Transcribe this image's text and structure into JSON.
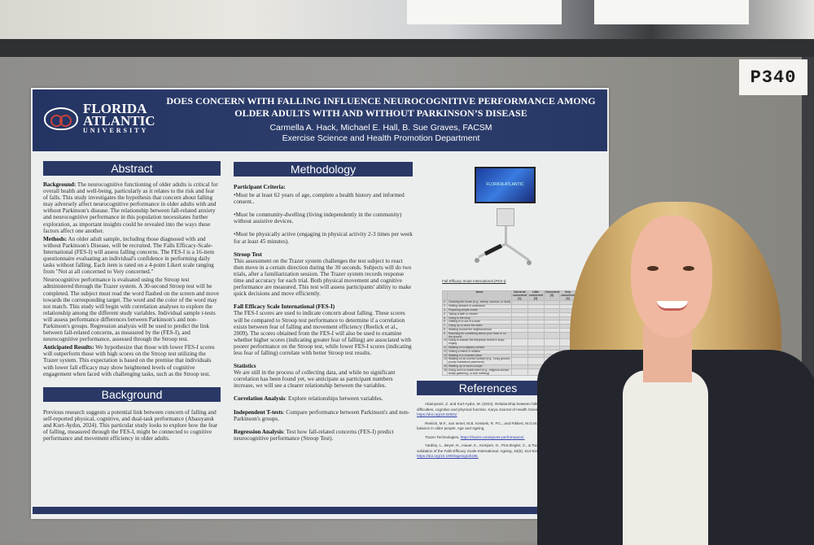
{
  "sign": {
    "label": "P340"
  },
  "poster": {
    "logo": {
      "line1": "FLORIDA",
      "line2": "ATLANTIC",
      "line3": "UNIVERSITY"
    },
    "title": "DOES CONCERN WITH FALLING INFLUENCE NEUROCOGNITIVE PERFORMANCE AMONG OLDER ADULTS WITH AND WITHOUT PARKINSON’S DISEASE",
    "authors": "Carmella A. Hack, Michael E. Hall, B. Sue Graves, FACSM",
    "department": "Exercise Science and Health Promotion Department",
    "abstract": {
      "heading": "Abstract",
      "background_label": "Background:",
      "background": " The neurocognitive functioning of older adults is critical for overall health and well-being, particularly as it relates to the risk and fear of falls. This study investigates the hypothesis that concern about falling may adversely affect neurocognitive performance in older adults with and without Parkinson's disease. The relationship between fall-related anxiety and neurocognitive performance in this population necessitates further exploration, as important insights could be revealed into the ways these factors affect one another.",
      "methods_label": "Methods:",
      "methods": " An older adult sample, including those diagnosed with and without Parkinson's Disease, will be recruited. The Falls Efficacy-Scale-International (FES-I) will assess falling concerns. The FES-I is a 16-item questionnaire evaluating an individual's confidence in performing daily tasks without falling. Each item is rated on a 4-point Likert scale ranging from \"Not at all concerned to Very concerned.\"",
      "methods2": "Neurocognitive performance is evaluated using the Stroop test administered through the Trazer system. A 30-second Stroop test will be completed. The subject must read the word flashed on the screen and move towards the corresponding target. The word and the color of the word may not match. This study will begin with correlation analyses to explore the relationship among the different study variables. Individual sample t-tests will assess performance differences between Parkinson's and non-Parkinson's groups. Regression analysis will be used to predict the link between fall-related concerns, as measured by the (FES-I), and neurocognitive performance, assessed through the Stroop test.",
      "results_label": "Anticipated Results:",
      "results": " We hypothesize that those with lower FES-I scores will outperform those with high scores on the Stroop test utilizing the Trazer system. This expectation is based on the premise that individuals with lower fall efficacy may show heightened levels of cognitive engagement when faced with challenging tasks, such as the Stroop test."
    },
    "background": {
      "heading": "Background",
      "text": "Previous research suggests a potential link between concern of falling and self-reported physical, cognitive, and dual-task performance (Abasıyanık and Kurt-Aydın, 2024). This particular study looks to explore how the fear of falling, measured through the FES-I, might be connected to cognitive performance and movement efficiency in older adults."
    },
    "methodology": {
      "heading": "Methodology",
      "criteria_label": "Participant Criteria:",
      "criteria": [
        "•Must be at least 62 years of age, complete a health history and informed consent..",
        "•Must be community-dwelling (living independently in the community) without assistive devices.",
        "•Must be physically active (engaging in physical activity 2-3 times per week for at least 45 minutes)."
      ],
      "stroop_label": "Stroop Test",
      "stroop": "This assessment on the Trazer system challenges the test subject to react then move in a certain direction during the 30 seconds. Subjects will do two trials, after a familiarization session. The Trazer system records response time and accuracy for each trial.  Both physical movement and cognitive performance are measured. This test will assess participants' ability to make quick decisions and move efficiently.",
      "fes_label": "Fall Efficacy Scale International (FES-I)",
      "fes": "The FES-I scores are used to indicate concern about falling. These scores will be compared to Stroop test performance to determine if a correlation exists between fear of falling and movement efficiency (Reelick et al., 2009). The scores obtained from the FES-I will also be used to examine whether higher scores (indicating greater fear of falling) are associated with poorer performance on the Stroop test, while lower FES-I scores (indicating less fear of falling) correlate with better Stroop test results.",
      "stats_label": "Statistics",
      "stats": "We are still in the process of collecting data, and while no significant correlation has been found yet, we anticipate as participant numbers increase, we will see a clearer relationship between the variables.",
      "corr_label": "Correlation Analysis",
      "corr": ": Explore relationships between variables.",
      "ttest_label": "Independent T-tests",
      "ttest": ": Compare performance between Parkinson's and non-Parkinson's groups.",
      "reg_label": "Regression Analysis",
      "reg": ": Test how fall-related concerns (FES-I) predict neurocognitive performance (Stroop Test)."
    },
    "figure": {
      "screen_text": "FLORIDA ATLANTIC",
      "caption": "Fall Efficacy Scale International (FES-I)",
      "table_headers": [
        "",
        "Items",
        "Not at all concerned [1]",
        "Little concerned [2]",
        "Concerned [3]",
        "Very concerned [4]"
      ],
      "items": [
        "Cleaning the house (e.g., sweep, vacuum, or dust)",
        "Getting dressed or undressed",
        "Preparing simple meals",
        "Taking a bath or shower",
        "Going to the shop",
        "Getting in or out of a chair",
        "Going up or down the stairs",
        "Walking around the neighbourhood",
        "Reaching for something above your head or on the ground",
        "Going to answer the telephone before it stops ringing",
        "Walking on a slippery surface",
        "Visiting a friend or relative",
        "Walking in a crowded place",
        "Walking on an uneven surface (e.g., rocky ground, poorly maintained pavement)",
        "Walking up or down a slope",
        "Going out to a social event (e.g., religious service, family gathering, or club meeting)"
      ]
    },
    "references": {
      "heading": "References",
      "items": [
        {
          "text": "Abasıyanık, Z. and Kurt-Aydın, M. (2024). Relationship between falls and self-reported dual-task difficulties, cognitive and physical function. Karya Journal of Health Science ,5(3), 100-108. ",
          "link": "https://doi.org/10.52831/"
        },
        {
          "text": "Reelick, M.F., van Iersel, M.B. Kessels, R. P.C., and Rikkert, M.G.M. of fear of falling on gait and balance in older people. Age and Ageing, ",
          "link": ""
        },
        {
          "text": "Trazer Technologies, ",
          "link": "https://trazer.com/sports-performance/."
        },
        {
          "text": "Yardley, L., Beyer, N., Hauer, K., Kempen, G., Piot-Ziegler, C., & Todd. Development and initial validation of the Falls Efficacy Scale-International. Ageing, 34(6), 614-619. ",
          "link": "https://doi.org/10.1093/ageing/afi196."
        }
      ]
    }
  }
}
